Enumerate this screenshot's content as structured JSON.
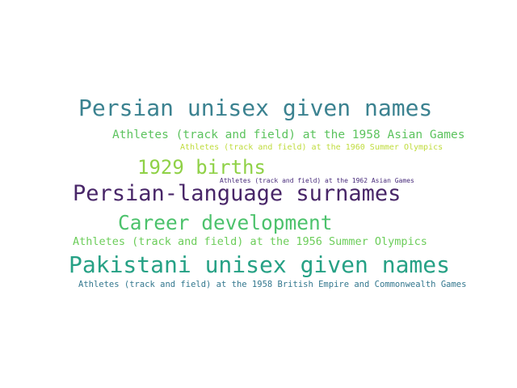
{
  "word_cloud": {
    "words": [
      {
        "text": "Persian unisex given names",
        "color": "#3b8290"
      },
      {
        "text": "Athletes (track and field) at the 1958 Asian Games",
        "color": "#5cc35e"
      },
      {
        "text": "Athletes (track and field) at the 1960 Summer Olympics",
        "color": "#bfdc3c"
      },
      {
        "text": "1929 births",
        "color": "#8fd146"
      },
      {
        "text": "Athletes (track and field) at the 1962 Asian Games",
        "color": "#472a7a"
      },
      {
        "text": "Persian-language surnames",
        "color": "#482668"
      },
      {
        "text": "Career development",
        "color": "#4cc26c"
      },
      {
        "text": "Athletes (track and field) at the 1956 Summer Olympics",
        "color": "#6ccd5a"
      },
      {
        "text": "Pakistani unisex given names",
        "color": "#26a185"
      },
      {
        "text": "Athletes (track and field) at the 1958 British Empire and Commonwealth Games",
        "color": "#33778e"
      }
    ]
  }
}
